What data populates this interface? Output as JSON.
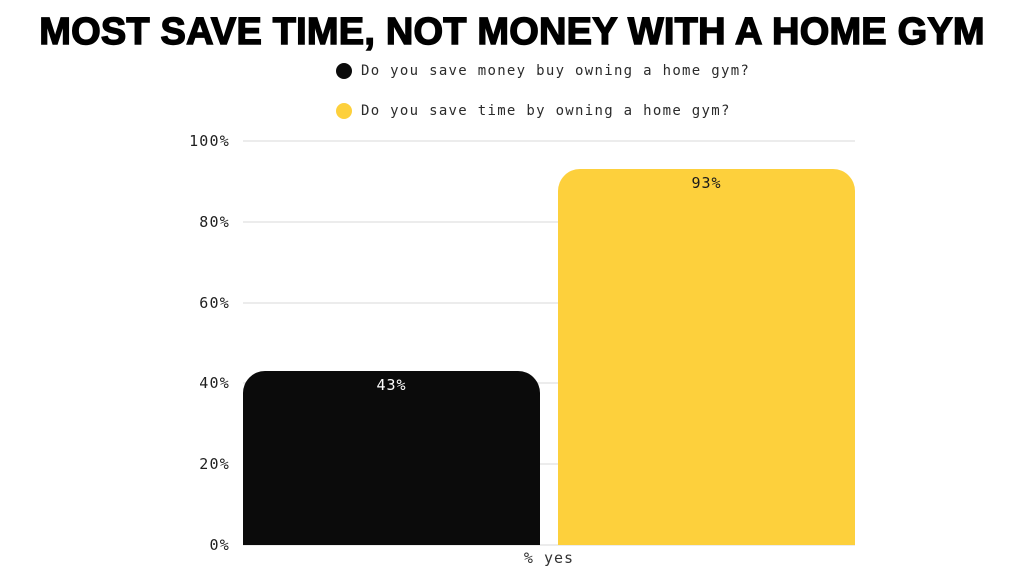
{
  "title": "MOST SAVE TIME, NOT MONEY WITH A HOME GYM",
  "legend": {
    "items": [
      {
        "label": "Do you save money buy owning a home gym?",
        "color": "#0b0b0b",
        "icon": "black-series-dot-icon"
      },
      {
        "label": "Do you save time by owning a home gym?",
        "color": "#fdd03c",
        "icon": "yellow-series-dot-icon"
      }
    ]
  },
  "chart_data": {
    "type": "bar",
    "title": "MOST SAVE TIME, NOT MONEY WITH A HOME GYM",
    "categories": [
      "% yes"
    ],
    "series": [
      {
        "name": "Do you save money buy owning a home gym?",
        "values": [
          43
        ],
        "color": "#0b0b0b",
        "label_color": "#ffffff"
      },
      {
        "name": "Do you save time by owning a home gym?",
        "values": [
          93
        ],
        "color": "#fdd03c",
        "label_color": "#1a1a1a"
      }
    ],
    "bar_labels": [
      "43%",
      "93%"
    ],
    "xlabel": "% yes",
    "ylabel": "",
    "ylim": [
      0,
      100
    ],
    "yticks": [
      "0%",
      "20%",
      "40%",
      "60%",
      "80%",
      "100%"
    ],
    "grid": true,
    "legend_position": "top"
  },
  "colors": {
    "background": "#ffffff",
    "gridline": "#ececec",
    "axis_text": "#1f1f1f",
    "legend_text": "#2b2b2b"
  }
}
